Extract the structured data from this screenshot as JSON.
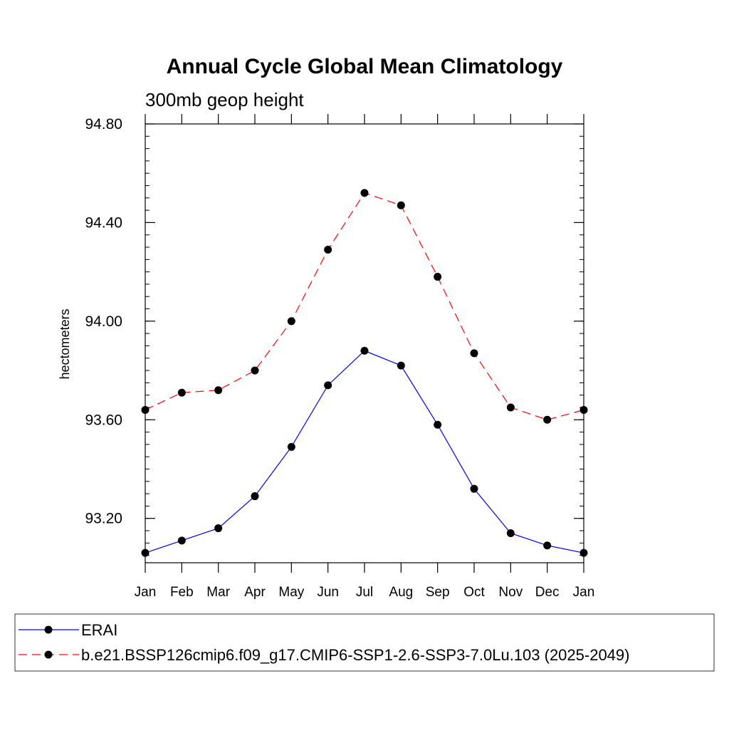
{
  "chart_data": {
    "type": "line",
    "title": "Annual Cycle Global Mean Climatology",
    "subtitle": "300mb geop height",
    "ylabel": "hectometers",
    "xlabel": "",
    "categories": [
      "Jan",
      "Feb",
      "Mar",
      "Apr",
      "May",
      "Jun",
      "Jul",
      "Aug",
      "Sep",
      "Oct",
      "Nov",
      "Dec",
      "Jan"
    ],
    "ylim": [
      93.02,
      94.8
    ],
    "yticks": [
      "94.80",
      "94.40",
      "94.00",
      "93.60",
      "93.20"
    ],
    "ytick_values": [
      94.8,
      94.4,
      94.0,
      93.6,
      93.2
    ],
    "legend_position": "bottom",
    "series": [
      {
        "name": "ERAI",
        "color": "#0000ff",
        "dashed": false,
        "values": [
          93.06,
          93.11,
          93.16,
          93.29,
          93.49,
          93.74,
          93.88,
          93.82,
          93.58,
          93.32,
          93.14,
          93.09,
          93.06
        ]
      },
      {
        "name": "b.e21.BSSP126cmip6.f09_g17.CMIP6-SSP1-2.6-SSP3-7.0Lu.103 (2025-2049)",
        "color": "#ff0000",
        "dashed": true,
        "values": [
          93.64,
          93.71,
          93.72,
          93.8,
          94.0,
          94.29,
          94.52,
          94.47,
          94.18,
          93.87,
          93.65,
          93.6,
          93.64
        ]
      }
    ]
  }
}
